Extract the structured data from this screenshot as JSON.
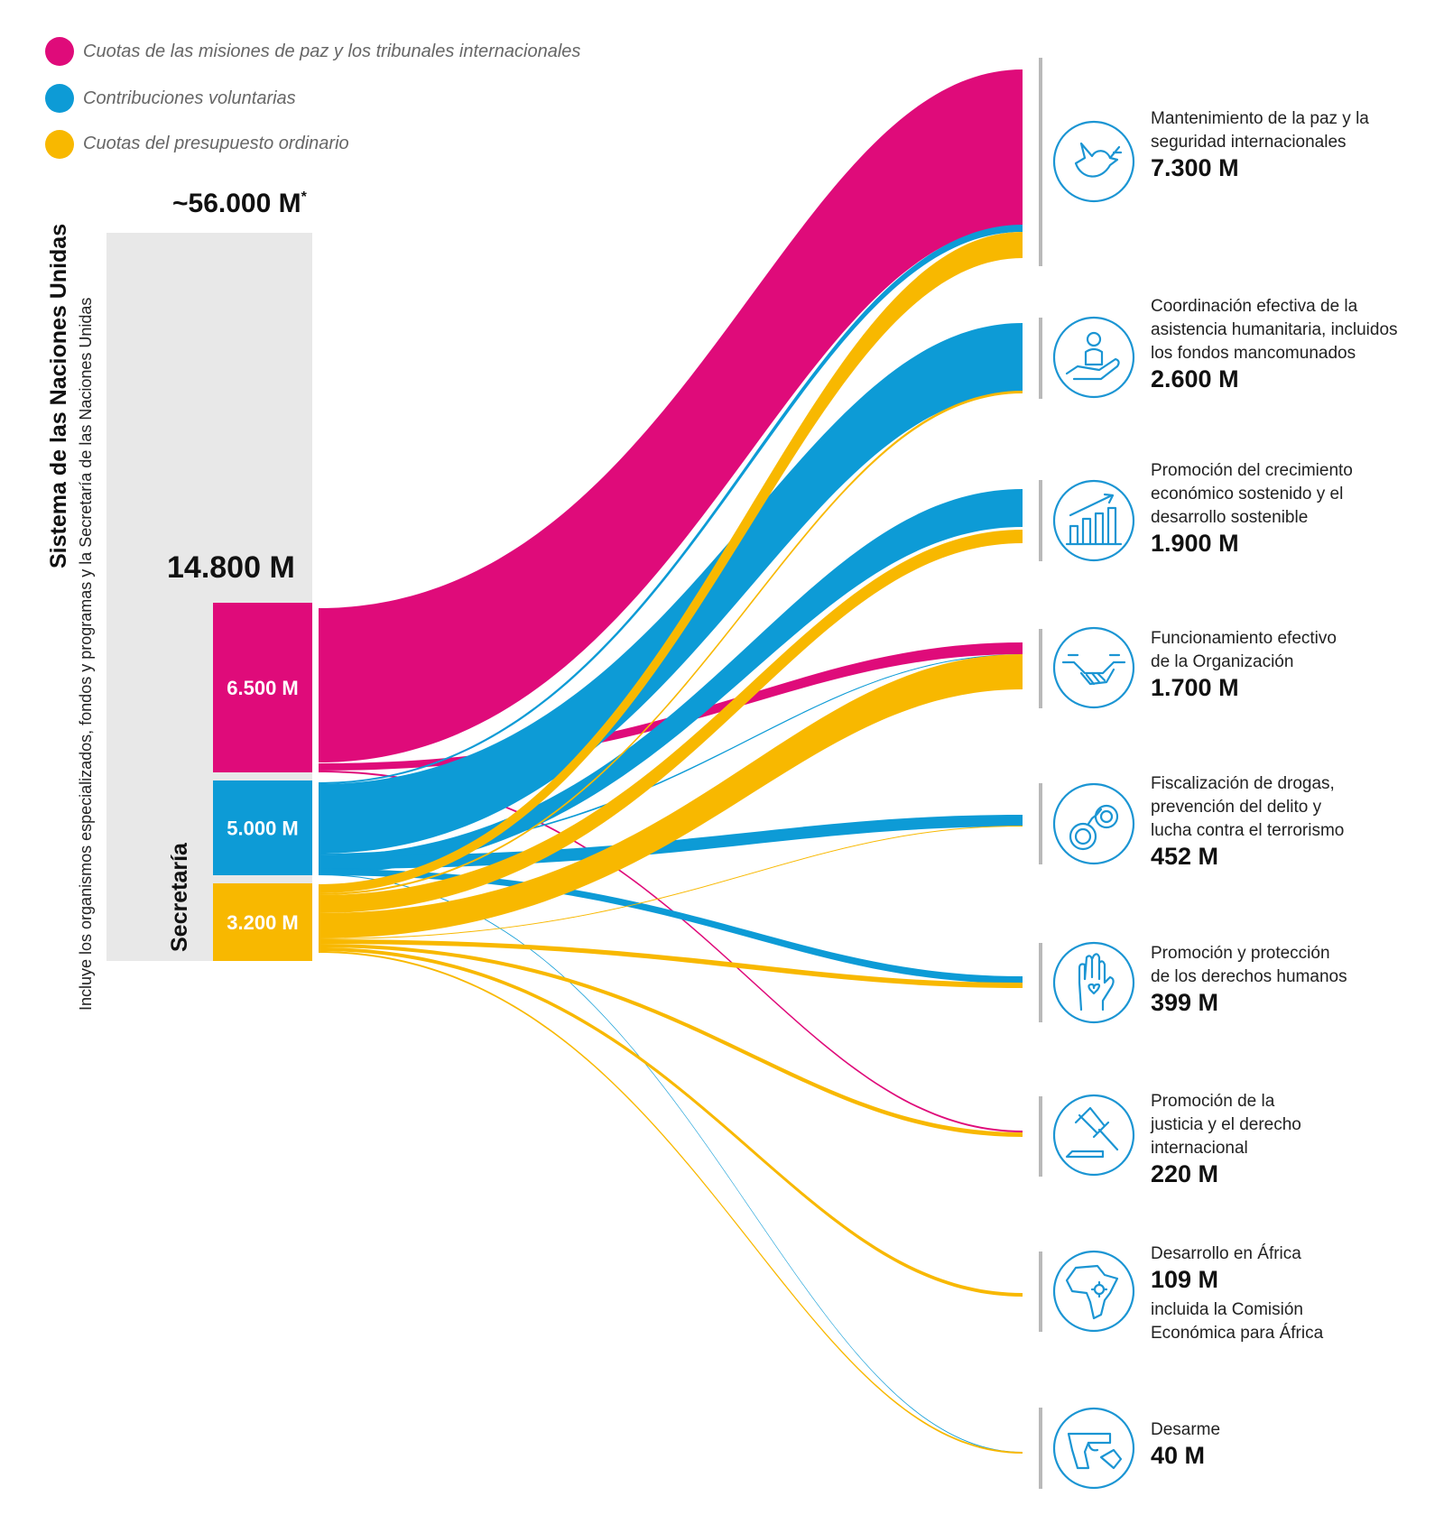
{
  "legend": [
    {
      "label": "Cuotas de las misiones de paz y los tribunales internacionales",
      "color": "#df0b7a"
    },
    {
      "label": "Contribuciones voluntarias",
      "color": "#0d9bd6"
    },
    {
      "label": "Cuotas del presupuesto ordinario",
      "color": "#f8b800"
    }
  ],
  "system": {
    "total": "~56.000 M",
    "total_mark": "*",
    "title": "Sistema de las Naciones Unidas",
    "note": "Incluye los organismos especializados, fondos y programas y la Secretaría de las Naciones Unidas"
  },
  "secretariat": {
    "title": "Secretaría",
    "total": "14.800 M",
    "segments": [
      {
        "label": "6.500 M",
        "value": 6500,
        "color": "#df0b7a"
      },
      {
        "label": "5.000 M",
        "value": 5000,
        "color": "#0d9bd6"
      },
      {
        "label": "3.200 M",
        "value": 3200,
        "color": "#f8b800"
      }
    ]
  },
  "destinations": [
    {
      "lines": [
        "Mantenimiento de la paz y la",
        "seguridad internacionales"
      ],
      "amount": "7.300 M",
      "icon": "dove-icon"
    },
    {
      "lines": [
        "Coordinación efectiva de la",
        "asistencia humanitaria, incluidos",
        "los fondos mancomunados"
      ],
      "amount": "2.600 M",
      "icon": "helping-hand-icon"
    },
    {
      "lines": [
        "Promoción del crecimiento",
        "económico sostenido y el",
        "desarrollo sostenible"
      ],
      "amount": "1.900 M",
      "icon": "growth-chart-icon"
    },
    {
      "lines": [
        "Funcionamiento efectivo",
        "de la Organización"
      ],
      "amount": "1.700 M",
      "icon": "handshake-icon"
    },
    {
      "lines": [
        "Fiscalización de drogas,",
        "prevención del delito y",
        "lucha contra el terrorismo"
      ],
      "amount": "452 M",
      "icon": "handcuffs-icon"
    },
    {
      "lines": [
        "Promoción y protección",
        "de los derechos humanos"
      ],
      "amount": "399 M",
      "icon": "raised-hand-icon"
    },
    {
      "lines": [
        "Promoción de la",
        "justicia y el derecho",
        "internacional"
      ],
      "amount": "220 M",
      "icon": "gavel-icon"
    },
    {
      "lines": [
        "Desarrollo en África"
      ],
      "amount": "109 M",
      "after": [
        "incluida la Comisión",
        "Económica para África"
      ],
      "icon": "africa-icon"
    },
    {
      "lines": [
        "Desarme"
      ],
      "amount": "40 M",
      "icon": "pistol-icon"
    }
  ]
}
